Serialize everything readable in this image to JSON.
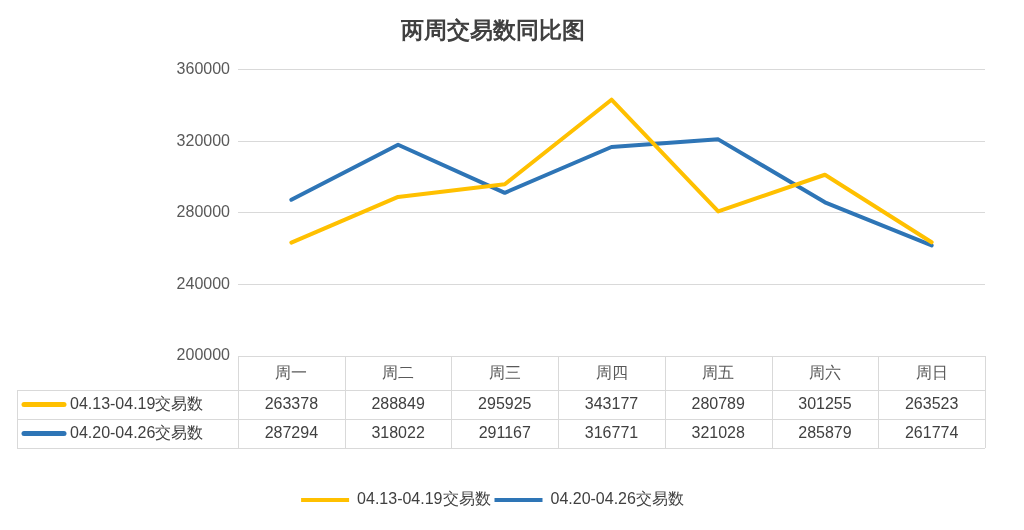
{
  "chart_data": {
    "type": "line",
    "title": "两周交易数同比图",
    "categories": [
      "周一",
      "周二",
      "周三",
      "周四",
      "周五",
      "周六",
      "周日"
    ],
    "series": [
      {
        "name": "04.13-04.19交易数",
        "color": "#ffc000",
        "values": [
          263378,
          288849,
          295925,
          343177,
          280789,
          301255,
          263523
        ]
      },
      {
        "name": "04.20-04.26交易数",
        "color": "#2e75b6",
        "values": [
          287294,
          318022,
          291167,
          316771,
          321028,
          285879,
          261774
        ]
      }
    ],
    "ylim": [
      200000,
      360000
    ],
    "yticks": [
      200000,
      240000,
      280000,
      320000,
      360000
    ],
    "grid": "y",
    "legend": "bottom",
    "marker": "none",
    "line_style": "solid",
    "data_labels": true
  }
}
